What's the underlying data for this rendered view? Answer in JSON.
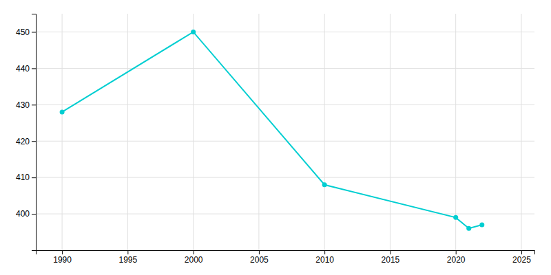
{
  "chart_data": {
    "type": "line",
    "x": [
      1990,
      2000,
      2010,
      2020,
      2021,
      2022
    ],
    "values": [
      428,
      450,
      408,
      399,
      396,
      397
    ],
    "color": "#00CED1",
    "marker": "circle",
    "xlim": [
      1988,
      2026
    ],
    "ylim": [
      390,
      455
    ],
    "xticks": [
      1990,
      1995,
      2000,
      2005,
      2010,
      2015,
      2020,
      2025
    ],
    "yticks": [
      400,
      410,
      420,
      430,
      440,
      450
    ],
    "grid": true
  }
}
